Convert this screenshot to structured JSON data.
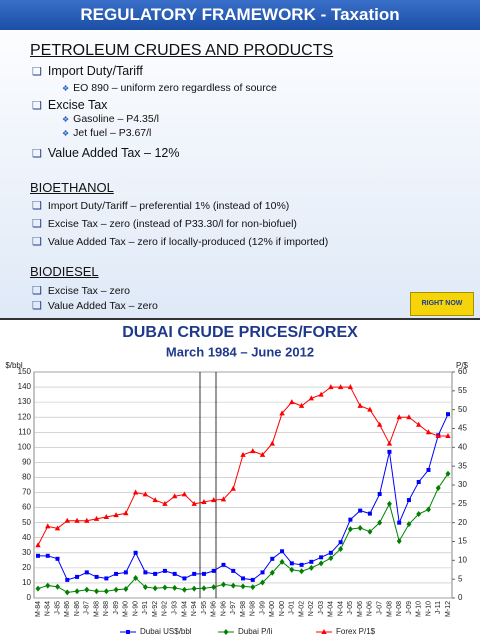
{
  "slide": {
    "title": "REGULATORY FRAMEWORK - Taxation",
    "sections": [
      {
        "heading": "PETROLEUM CRUDES AND PRODUCTS",
        "items": [
          {
            "text": "Import Duty/Tariff",
            "sub": [
              "EO 890 – uniform zero regardless of source"
            ]
          },
          {
            "text": "Excise Tax",
            "sub": [
              "Gasoline – P4.35/l",
              "Jet fuel   – P3.67/l"
            ]
          },
          {
            "text": "Value Added Tax – 12%",
            "sub": []
          }
        ]
      },
      {
        "heading": "BIOETHANOL",
        "items": [
          {
            "text": "Import Duty/Tariff – preferential 1% (instead of 10%)",
            "sub": []
          },
          {
            "text": "Excise Tax – zero (instead of P33.30/l for non-biofuel)",
            "sub": []
          },
          {
            "text": "Value Added Tax – zero if locally-produced (12% if imported)",
            "sub": []
          }
        ]
      },
      {
        "heading": "BIODIESEL",
        "items": [
          {
            "text": "Excise Tax – zero",
            "sub": []
          },
          {
            "text": "Value Added Tax – zero",
            "sub": []
          }
        ]
      }
    ],
    "logo": "RIGHT NOW"
  },
  "chart_data": {
    "type": "line",
    "title": "DUBAI CRUDE PRICES/FOREX",
    "subtitle": "March 1984 – June 2012",
    "ylabel": "$/bbl",
    "y2label": "P/$",
    "categories": [
      "M-84",
      "N-84",
      "J-85",
      "M-86",
      "N-86",
      "J-87",
      "M-88",
      "N-88",
      "J-89",
      "M-90",
      "N-90",
      "J-91",
      "M-92",
      "N-92",
      "J-93",
      "M-94",
      "N-94",
      "J-95",
      "M-96",
      "N-96",
      "J-97",
      "M-98",
      "N-98",
      "J-99",
      "M-00",
      "N-00",
      "J-01",
      "M-02",
      "N-02",
      "J-03",
      "M-04",
      "N-04",
      "J-05",
      "M-06",
      "N-06",
      "J-07",
      "M-08",
      "N-08",
      "J-09",
      "M-10",
      "N-10",
      "J-11",
      "M-12"
    ],
    "series": [
      {
        "name": "Dubai US$/bbl",
        "color": "#0000ff",
        "marker": "square",
        "axis": "y",
        "values": [
          28,
          28,
          26,
          12,
          14,
          17,
          14,
          13,
          16,
          17,
          30,
          17,
          16,
          18,
          16,
          13,
          16,
          16,
          18,
          22,
          18,
          13,
          12,
          17,
          26,
          31,
          23,
          22,
          24,
          27,
          30,
          37,
          52,
          58,
          56,
          69,
          97,
          50,
          65,
          77,
          85,
          108,
          122
        ]
      },
      {
        "name": "Dubai P/li",
        "color": "#008000",
        "marker": "diamond",
        "axis": "y2",
        "values": [
          2.5,
          3.3,
          3.0,
          1.5,
          1.8,
          2.2,
          1.8,
          1.8,
          2.2,
          2.4,
          5.3,
          2.9,
          2.6,
          2.8,
          2.7,
          2.2,
          2.5,
          2.6,
          2.9,
          3.6,
          3.3,
          3.1,
          2.9,
          4.1,
          6.7,
          9.6,
          7.5,
          7.1,
          8.0,
          9.2,
          10.6,
          13.0,
          18.3,
          18.6,
          17.6,
          20.0,
          25.0,
          15.1,
          19.6,
          22.3,
          23.5,
          29.2,
          33.0
        ]
      },
      {
        "name": "Forex P/1$",
        "color": "#ff0000",
        "marker": "triangle",
        "axis": "y2",
        "values": [
          14,
          19,
          18.5,
          20.5,
          20.5,
          20.5,
          21,
          21.5,
          22,
          22.5,
          28,
          27.5,
          26,
          25,
          27,
          27.5,
          25,
          25.5,
          26,
          26.2,
          29,
          38,
          39,
          38,
          41,
          49,
          52,
          51,
          53,
          54,
          56,
          56,
          56,
          51,
          50,
          46,
          41,
          48,
          48,
          46,
          44,
          43,
          43
        ]
      }
    ],
    "ylim": [
      0,
      150
    ],
    "yticks": [
      0,
      10,
      20,
      30,
      40,
      50,
      60,
      70,
      80,
      90,
      100,
      110,
      120,
      130,
      140,
      150
    ],
    "y2lim": [
      0,
      60
    ],
    "y2ticks": [
      0,
      5,
      10,
      15,
      20,
      25,
      30,
      35,
      40,
      45,
      50,
      55,
      60
    ],
    "legend": "bottom"
  }
}
